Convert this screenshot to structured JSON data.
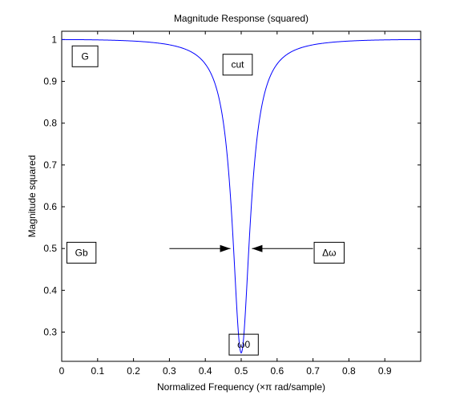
{
  "chart_data": {
    "type": "line",
    "title": "Magnitude Response (squared)",
    "xlabel": "Normalized Frequency (×π rad/sample)",
    "ylabel": "Magnitude squared",
    "xlim": [
      0,
      1
    ],
    "ylim": [
      0.23,
      1.02
    ],
    "xticks": [
      0,
      0.1,
      0.2,
      0.3,
      0.4,
      0.5,
      0.6,
      0.7,
      0.8,
      0.9
    ],
    "xtick_labels": [
      "0",
      "0.1",
      "0.2",
      "0.3",
      "0.4",
      "0.5",
      "0.6",
      "0.7",
      "0.8",
      "0.9"
    ],
    "yticks": [
      0.3,
      0.4,
      0.5,
      0.6,
      0.7,
      0.8,
      0.9,
      1
    ],
    "ytick_labels": [
      "0.3",
      "0.4",
      "0.5",
      "0.6",
      "0.7",
      "0.8",
      "0.9",
      "1"
    ],
    "grid": false,
    "line_color": "#0000ff",
    "notch": {
      "center": 0.5,
      "depth": 0.25,
      "half_power_width": 0.06
    },
    "annotations": [
      {
        "id": "G",
        "text": "G",
        "x": 0.065,
        "y": 0.96
      },
      {
        "id": "cut",
        "text": "cut",
        "x": 0.49,
        "y": 0.94
      },
      {
        "id": "Gb",
        "text": "Gb",
        "x": 0.055,
        "y": 0.49
      },
      {
        "id": "dw",
        "text": "Δω",
        "x": 0.745,
        "y": 0.49
      },
      {
        "id": "w0",
        "text": "ω0",
        "x": 0.507,
        "y": 0.27
      }
    ],
    "arrows": [
      {
        "from": [
          0.3,
          0.5
        ],
        "to": [
          0.47,
          0.5
        ]
      },
      {
        "from": [
          0.7,
          0.5
        ],
        "to": [
          0.53,
          0.5
        ]
      }
    ]
  }
}
